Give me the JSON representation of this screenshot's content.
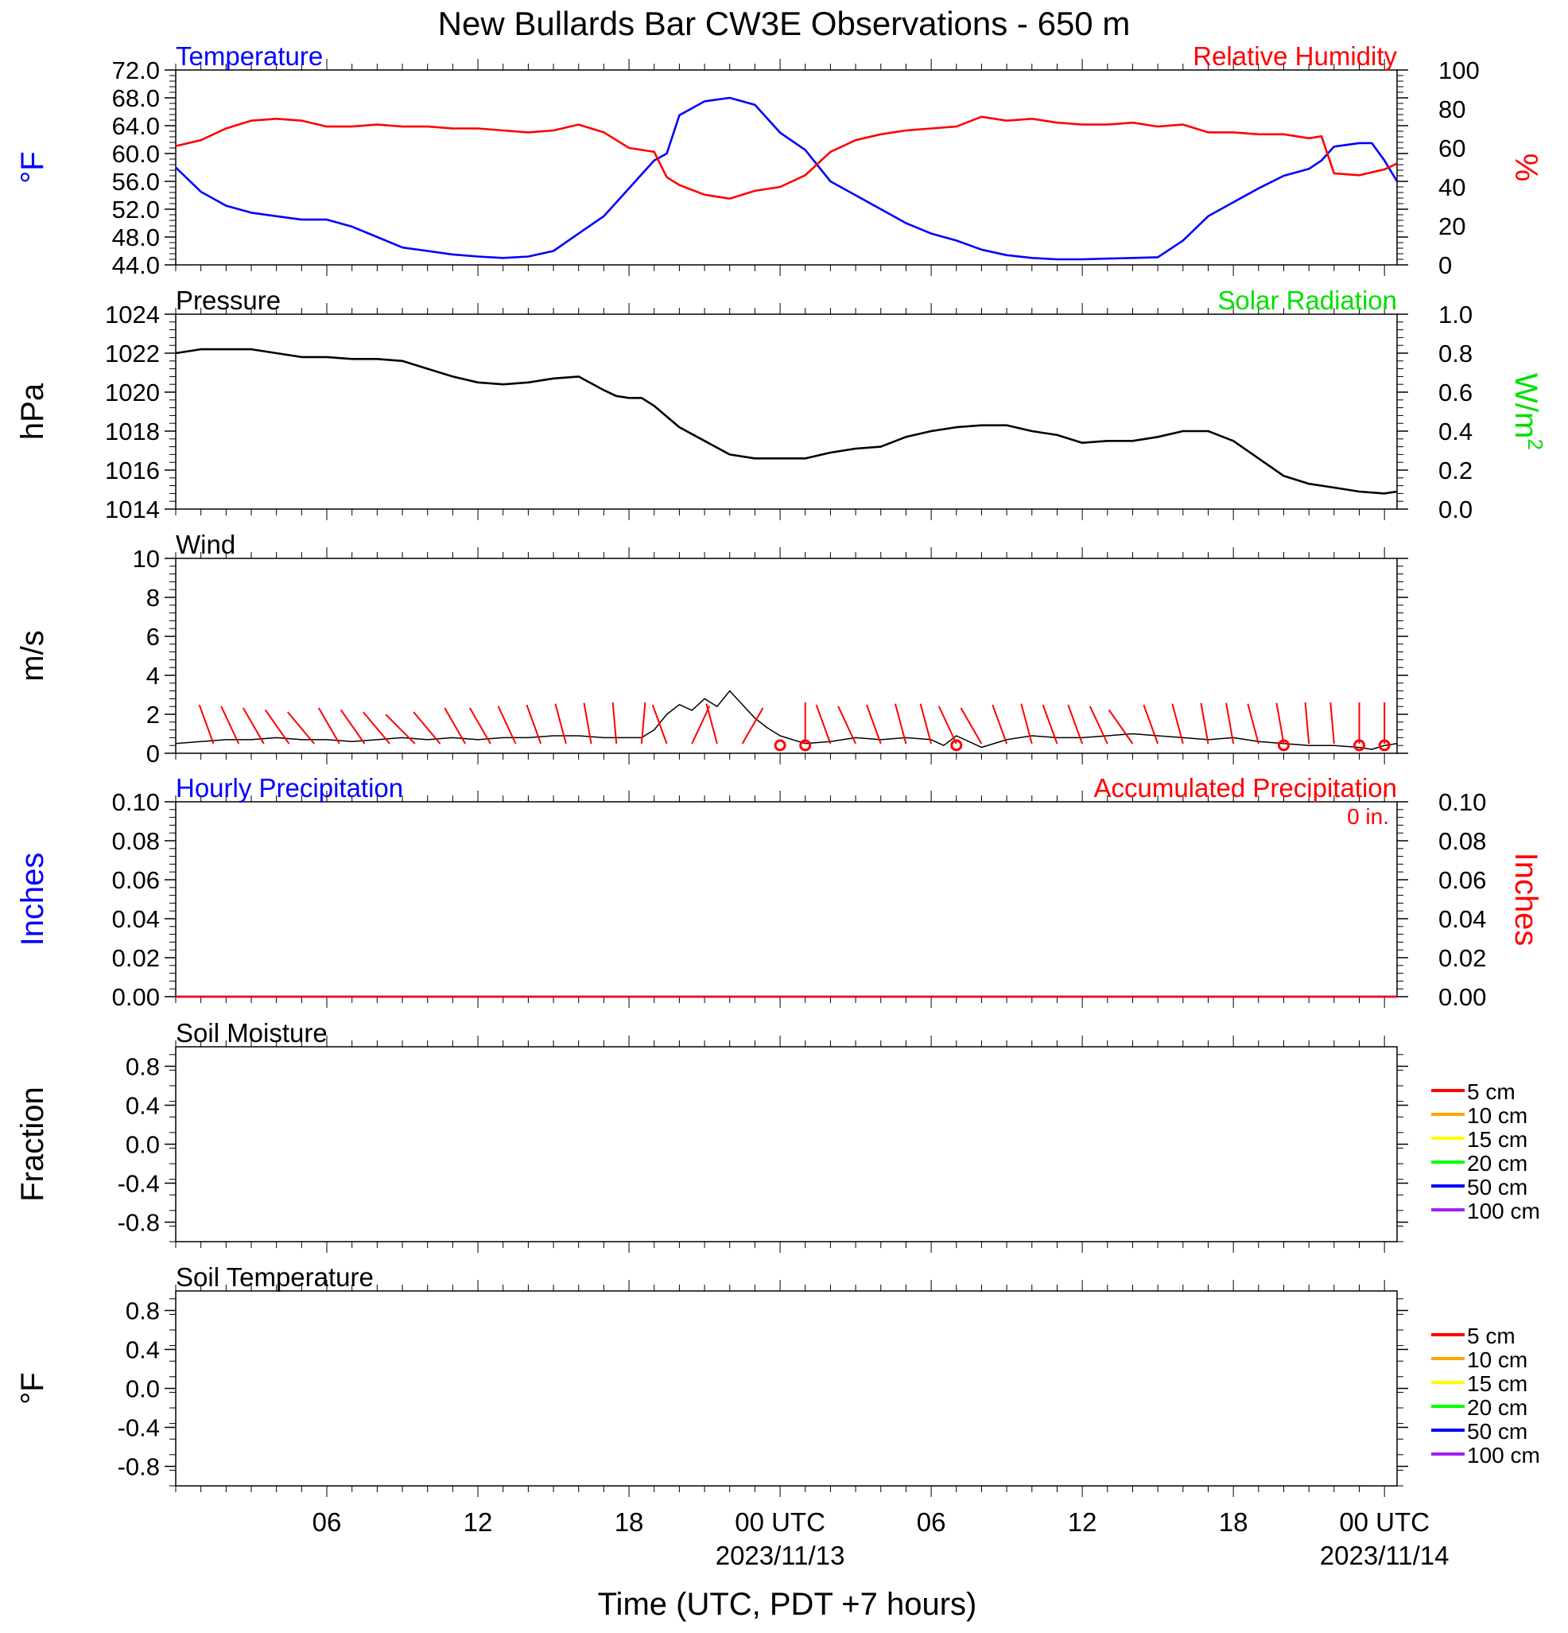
{
  "title": "New Bullards Bar CW3E Observations - 650 m",
  "x_axis": {
    "label": "Time (UTC, PDT +7 hours)",
    "ticks": [
      {
        "hour": 6,
        "label": "06",
        "date": ""
      },
      {
        "hour": 12,
        "label": "12",
        "date": ""
      },
      {
        "hour": 18,
        "label": "18",
        "date": ""
      },
      {
        "hour": 24,
        "label": "00 UTC",
        "date": "2023/11/13"
      },
      {
        "hour": 30,
        "label": "06",
        "date": ""
      },
      {
        "hour": 36,
        "label": "12",
        "date": ""
      },
      {
        "hour": 42,
        "label": "18",
        "date": ""
      },
      {
        "hour": 48,
        "label": "00 UTC",
        "date": "2023/11/14"
      }
    ]
  },
  "colors": {
    "blue": "#0000ff",
    "red": "#ff0000",
    "green": "#00e000",
    "black": "#000000"
  },
  "chart_data": [
    {
      "id": "temperature_rh",
      "type": "line",
      "left_title": "Temperature",
      "right_title": "Relative Humidity",
      "left_unit": "°F",
      "right_unit": "%",
      "left_ticks": [
        "72.0",
        "68.0",
        "64.0",
        "60.0",
        "56.0",
        "52.0",
        "48.0",
        "44.0"
      ],
      "right_ticks": [
        "100",
        "80",
        "60",
        "40",
        "20",
        "0"
      ],
      "ylim_left": [
        44,
        72
      ],
      "ylim_right": [
        0,
        100
      ],
      "series": [
        {
          "name": "Temperature",
          "axis": "left",
          "color": "#0000ff",
          "x": [
            0,
            1,
            2,
            3,
            4,
            5,
            6,
            7,
            8,
            9,
            10,
            11,
            12,
            13,
            14,
            15,
            16,
            17,
            18,
            18.5,
            19,
            19.5,
            20,
            21,
            22,
            23,
            24,
            25,
            26,
            27,
            28,
            29,
            30,
            31,
            32,
            33,
            34,
            35,
            36,
            37,
            38,
            39,
            40,
            41,
            42,
            43,
            44,
            45,
            45.5,
            46,
            47,
            47.5,
            48,
            48.5
          ],
          "y": [
            58,
            54.5,
            52.5,
            51.5,
            51,
            50.5,
            50.5,
            49.5,
            48,
            46.5,
            46,
            45.5,
            45.2,
            45,
            45.2,
            46,
            48.5,
            51,
            55,
            57,
            59,
            60,
            65.5,
            67.5,
            68,
            67,
            63,
            60.5,
            56,
            54,
            52,
            50,
            48.5,
            47.5,
            46.2,
            45.4,
            45,
            44.8,
            44.8,
            44.9,
            45,
            45.1,
            47.5,
            51,
            53,
            55,
            56.8,
            57.8,
            59,
            61,
            61.5,
            61.5,
            59,
            56
          ]
        },
        {
          "name": "Relative Humidity",
          "axis": "right",
          "color": "#ff0000",
          "x": [
            0,
            1,
            2,
            3,
            4,
            5,
            6,
            7,
            8,
            9,
            10,
            11,
            12,
            13,
            14,
            15,
            16,
            17,
            18,
            19,
            19.5,
            20,
            21,
            22,
            23,
            24,
            25,
            26,
            27,
            28,
            29,
            30,
            31,
            32,
            33,
            34,
            35,
            36,
            37,
            38,
            39,
            40,
            41,
            42,
            43,
            44,
            45,
            45.5,
            46,
            47,
            48,
            48.5
          ],
          "y": [
            61,
            64,
            70,
            74,
            75,
            74,
            71,
            71,
            72,
            71,
            71,
            70,
            70,
            69,
            68,
            69,
            72,
            68,
            60,
            58,
            45,
            41,
            36,
            34,
            38,
            40,
            46,
            58,
            64,
            67,
            69,
            70,
            71,
            76,
            74,
            75,
            73,
            72,
            72,
            73,
            71,
            72,
            68,
            68,
            67,
            67,
            65,
            66,
            47,
            46,
            49,
            52
          ]
        }
      ]
    },
    {
      "id": "pressure_solar",
      "type": "line",
      "left_title": "Pressure",
      "right_title": "Solar Radiation",
      "left_unit": "hPa",
      "right_unit": "W/m",
      "right_unit_sup": "2",
      "left_ticks": [
        "1024",
        "1022",
        "1020",
        "1018",
        "1016",
        "1014"
      ],
      "right_ticks": [
        "1.0",
        "0.8",
        "0.6",
        "0.4",
        "0.2",
        "0.0"
      ],
      "ylim_left": [
        1014,
        1024
      ],
      "ylim_right": [
        0,
        1
      ],
      "series": [
        {
          "name": "Pressure",
          "axis": "left",
          "color": "#000000",
          "x": [
            0,
            1,
            2,
            3,
            4,
            5,
            6,
            7,
            8,
            9,
            10,
            11,
            12,
            13,
            14,
            15,
            16,
            17,
            17.5,
            18,
            18.5,
            19,
            20,
            21,
            22,
            23,
            24,
            25,
            26,
            27,
            28,
            29,
            30,
            31,
            32,
            33,
            34,
            35,
            36,
            37,
            38,
            39,
            40,
            41,
            42,
            43,
            44,
            45,
            46,
            47,
            48,
            48.5
          ],
          "y": [
            1022,
            1022.2,
            1022.2,
            1022.2,
            1022,
            1021.8,
            1021.8,
            1021.7,
            1021.7,
            1021.6,
            1021.2,
            1020.8,
            1020.5,
            1020.4,
            1020.5,
            1020.7,
            1020.8,
            1020.1,
            1019.8,
            1019.7,
            1019.7,
            1019.3,
            1018.2,
            1017.5,
            1016.8,
            1016.6,
            1016.6,
            1016.6,
            1016.9,
            1017.1,
            1017.2,
            1017.7,
            1018,
            1018.2,
            1018.3,
            1018.3,
            1018,
            1017.8,
            1017.4,
            1017.5,
            1017.5,
            1017.7,
            1018,
            1018,
            1017.5,
            1016.6,
            1015.7,
            1015.3,
            1015.1,
            1014.9,
            1014.8,
            1014.9
          ]
        }
      ]
    },
    {
      "id": "wind",
      "type": "line",
      "left_title": "Wind",
      "left_unit": "m/s",
      "left_ticks": [
        "10",
        "8",
        "6",
        "4",
        "2",
        "0"
      ],
      "ylim_left": [
        0,
        10
      ],
      "series": [
        {
          "name": "Wind",
          "axis": "left",
          "color": "#000000",
          "x": [
            0,
            1,
            2,
            3,
            4,
            5,
            6,
            7,
            8,
            9,
            10,
            11,
            12,
            13,
            14,
            15,
            16,
            17,
            18,
            18.5,
            19,
            19.5,
            20,
            20.5,
            21,
            21.5,
            22,
            22.5,
            23,
            23.5,
            24,
            25,
            26,
            27,
            28,
            29,
            30,
            30.5,
            31,
            32,
            33,
            34,
            35,
            36,
            37,
            38,
            39,
            40,
            41,
            42,
            43,
            44,
            45,
            46,
            47,
            47.5,
            48,
            48.5
          ],
          "y": [
            0.5,
            0.6,
            0.7,
            0.7,
            0.8,
            0.7,
            0.7,
            0.6,
            0.7,
            0.8,
            0.7,
            0.8,
            0.7,
            0.8,
            0.8,
            0.9,
            0.9,
            0.8,
            0.8,
            0.8,
            1.2,
            2.0,
            2.5,
            2.2,
            2.8,
            2.4,
            3.2,
            2.5,
            1.8,
            1.3,
            0.9,
            0.5,
            0.6,
            0.8,
            0.7,
            0.8,
            0.7,
            0.4,
            0.9,
            0.3,
            0.7,
            0.9,
            0.8,
            0.8,
            0.9,
            1.0,
            0.9,
            0.8,
            0.7,
            0.8,
            0.6,
            0.5,
            0.4,
            0.4,
            0.3,
            0.2,
            0.4,
            0.5
          ]
        }
      ],
      "barbs_x": [
        1.5,
        2.5,
        3.5,
        4.5,
        5.5,
        6.5,
        7.5,
        8.5,
        9.5,
        10.5,
        11.5,
        12.5,
        13.5,
        14.5,
        15.5,
        16.5,
        17.5,
        18.5,
        19.5,
        20.5,
        21.5,
        22.5,
        25,
        26,
        27,
        28,
        29,
        30,
        31,
        32,
        33,
        34,
        35,
        36,
        37,
        38,
        39,
        40,
        41,
        42,
        43,
        44,
        45,
        46,
        47,
        48
      ],
      "barb_angles": [
        -20,
        -25,
        -30,
        -35,
        -40,
        -30,
        -35,
        -40,
        -45,
        -40,
        -30,
        -30,
        -25,
        -20,
        -15,
        -10,
        -5,
        5,
        -20,
        25,
        -15,
        30,
        0,
        -20,
        -25,
        -20,
        -15,
        -15,
        -25,
        -30,
        -20,
        -15,
        -20,
        -20,
        -25,
        -35,
        -20,
        -15,
        -10,
        -10,
        -15,
        -10,
        -5,
        -5,
        0,
        0
      ],
      "calm_x": [
        24,
        25,
        31,
        44,
        47,
        48
      ]
    },
    {
      "id": "precipitation",
      "type": "line",
      "left_title": "Hourly Precipitation",
      "right_title": "Accumulated Precipitation",
      "left_unit": "Inches",
      "right_unit": "Inches",
      "annotation": "0 in.",
      "left_ticks": [
        "0.10",
        "0.08",
        "0.06",
        "0.04",
        "0.02",
        "0.00"
      ],
      "right_ticks": [
        "0.10",
        "0.08",
        "0.06",
        "0.04",
        "0.02",
        "0.00"
      ],
      "ylim_left": [
        0,
        0.1
      ],
      "ylim_right": [
        0,
        0.1
      ],
      "series": [
        {
          "name": "Hourly Precipitation",
          "axis": "left",
          "color": "#0000ff",
          "x": [
            0,
            48.5
          ],
          "y": [
            0,
            0
          ]
        },
        {
          "name": "Accumulated Precipitation",
          "axis": "right",
          "color": "#ff0000",
          "x": [
            0,
            48.5
          ],
          "y": [
            0,
            0
          ]
        }
      ]
    },
    {
      "id": "soil_moisture",
      "type": "line",
      "left_title": "Soil Moisture",
      "left_unit": "Fraction",
      "left_ticks": [
        "0.8",
        "0.4",
        "0.0",
        "-0.4",
        "-0.8"
      ],
      "ylim_left": [
        -1,
        1
      ],
      "legend": [
        {
          "label": "5 cm",
          "color": "#ff0000"
        },
        {
          "label": "10 cm",
          "color": "#ffa500"
        },
        {
          "label": "15 cm",
          "color": "#ffff00"
        },
        {
          "label": "20 cm",
          "color": "#00ff00"
        },
        {
          "label": "50 cm",
          "color": "#0000ff"
        },
        {
          "label": "100 cm",
          "color": "#a020f0"
        }
      ],
      "series": []
    },
    {
      "id": "soil_temperature",
      "type": "line",
      "left_title": "Soil Temperature",
      "left_unit": "°F",
      "left_ticks": [
        "0.8",
        "0.4",
        "0.0",
        "-0.4",
        "-0.8"
      ],
      "ylim_left": [
        -1,
        1
      ],
      "legend": [
        {
          "label": "5 cm",
          "color": "#ff0000"
        },
        {
          "label": "10 cm",
          "color": "#ffa500"
        },
        {
          "label": "15 cm",
          "color": "#ffff00"
        },
        {
          "label": "20 cm",
          "color": "#00ff00"
        },
        {
          "label": "50 cm",
          "color": "#0000ff"
        },
        {
          "label": "100 cm",
          "color": "#a020f0"
        }
      ],
      "series": []
    }
  ]
}
